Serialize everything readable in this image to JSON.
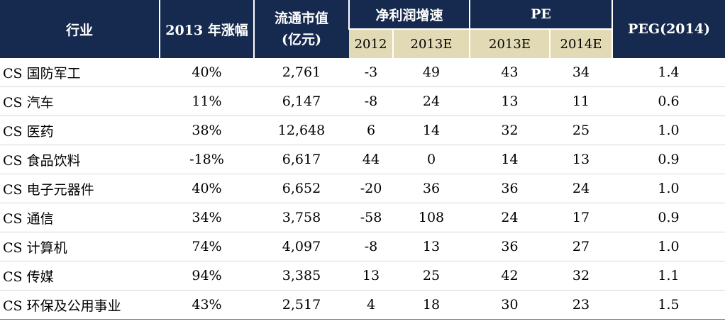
{
  "header": {
    "industry": "行业",
    "change_2013": "2013 年涨幅",
    "market_cap_line1": "流通市值",
    "market_cap_line2": "(亿元)",
    "net_profit_growth": "净利润增速",
    "pe": "PE",
    "peg": "PEG(2014)",
    "sub_2012": "2012",
    "sub_2013e": "2013E",
    "sub_pe_2013e": "2013E",
    "sub_pe_2014e": "2014E"
  },
  "rows": [
    {
      "name": "CS 国防军工",
      "chg": "40%",
      "cap": "2,761",
      "g2012": "-3",
      "g2013e": "49",
      "pe2013e": "43",
      "pe2014e": "34",
      "peg": "1.4"
    },
    {
      "name": "CS 汽车",
      "chg": "11%",
      "cap": "6,147",
      "g2012": "-8",
      "g2013e": "24",
      "pe2013e": "13",
      "pe2014e": "11",
      "peg": "0.6"
    },
    {
      "name": "CS 医药",
      "chg": "38%",
      "cap": "12,648",
      "g2012": "6",
      "g2013e": "14",
      "pe2013e": "32",
      "pe2014e": "25",
      "peg": "1.0"
    },
    {
      "name": "CS 食品饮料",
      "chg": "-18%",
      "cap": "6,617",
      "g2012": "44",
      "g2013e": "0",
      "pe2013e": "14",
      "pe2014e": "13",
      "peg": "0.9"
    },
    {
      "name": "CS 电子元器件",
      "chg": "40%",
      "cap": "6,652",
      "g2012": "-20",
      "g2013e": "36",
      "pe2013e": "36",
      "pe2014e": "24",
      "peg": "1.0"
    },
    {
      "name": "CS 通信",
      "chg": "34%",
      "cap": "3,758",
      "g2012": "-58",
      "g2013e": "108",
      "pe2013e": "24",
      "pe2014e": "17",
      "peg": "0.9"
    },
    {
      "name": "CS 计算机",
      "chg": "74%",
      "cap": "4,097",
      "g2012": "-8",
      "g2013e": "13",
      "pe2013e": "36",
      "pe2014e": "27",
      "peg": "1.0"
    },
    {
      "name": "CS 传媒",
      "chg": "94%",
      "cap": "3,385",
      "g2012": "13",
      "g2013e": "25",
      "pe2013e": "42",
      "pe2014e": "32",
      "peg": "1.1"
    },
    {
      "name": "CS 环保及公用事业",
      "chg": "43%",
      "cap": "2,517",
      "g2012": "4",
      "g2013e": "18",
      "pe2013e": "30",
      "pe2014e": "23",
      "peg": "1.5"
    }
  ]
}
